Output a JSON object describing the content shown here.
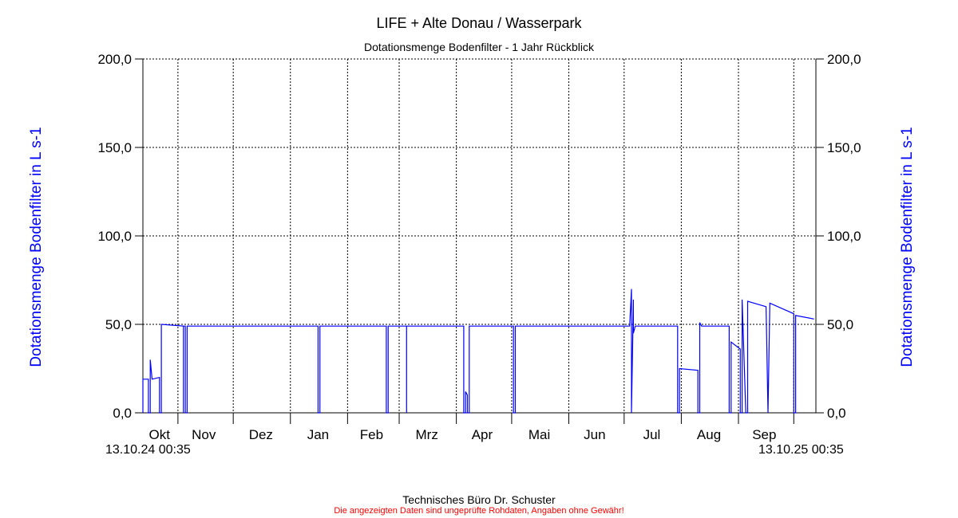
{
  "chart_data": {
    "type": "line",
    "title": "LIFE + Alte Donau / Wasserpark",
    "subtitle": "Dotationsmenge Bodenfilter - 1 Jahr Rückblick",
    "ylabel_left": "Dotationsmenge Bodenfilter in L s-1",
    "ylabel_right": "Dotationsmenge Bodenfilter in L s-1",
    "ylim": [
      0,
      200
    ],
    "yticks": [
      "0,0",
      "50,0",
      "100,0",
      "150,0",
      "200,0"
    ],
    "ytick_values": [
      0,
      50,
      100,
      150,
      200
    ],
    "x_start": "13.10.24 00:35",
    "x_end": "13.10.25 00:35",
    "xlim": [
      "2024-10-13",
      "2025-10-13"
    ],
    "month_boundaries": [
      "2024-11-01",
      "2024-12-01",
      "2025-01-01",
      "2025-02-01",
      "2025-03-01",
      "2025-04-01",
      "2025-05-01",
      "2025-06-01",
      "2025-07-01",
      "2025-08-01",
      "2025-09-01",
      "2025-10-01"
    ],
    "month_labels": [
      "Okt",
      "Nov",
      "Dez",
      "Jan",
      "Feb",
      "Mrz",
      "Apr",
      "Mai",
      "Jun",
      "Jul",
      "Aug",
      "Sep"
    ],
    "month_label_dates": [
      "2024-10-22",
      "2024-11-15",
      "2024-12-16",
      "2025-01-16",
      "2025-02-14",
      "2025-03-16",
      "2025-04-15",
      "2025-05-16",
      "2025-06-15",
      "2025-07-16",
      "2025-08-16",
      "2025-09-15"
    ],
    "grid": true,
    "line_color": "#0000ff",
    "series": [
      {
        "points": [
          [
            "2024-10-13",
            0
          ],
          [
            "2024-10-13",
            19
          ],
          [
            "2024-10-16",
            19
          ],
          [
            "2024-10-16",
            0
          ],
          [
            "2024-10-17",
            0
          ],
          [
            "2024-10-17",
            30
          ],
          [
            "2024-10-18",
            19
          ],
          [
            "2024-10-22",
            20
          ],
          [
            "2024-10-22",
            0
          ],
          [
            "2024-10-23",
            0
          ],
          [
            "2024-10-23",
            50
          ],
          [
            "2024-11-04",
            49
          ],
          [
            "2024-11-04",
            0
          ],
          [
            "2024-11-04",
            49
          ],
          [
            "2024-11-05",
            49
          ],
          [
            "2024-11-05",
            0
          ],
          [
            "2024-11-06",
            0
          ],
          [
            "2024-11-06",
            49
          ],
          [
            "2025-01-16",
            49
          ],
          [
            "2025-01-16",
            0
          ],
          [
            "2025-01-17",
            0
          ],
          [
            "2025-01-17",
            49
          ],
          [
            "2025-02-22",
            49
          ],
          [
            "2025-02-22",
            0
          ],
          [
            "2025-02-23",
            0
          ],
          [
            "2025-02-23",
            49
          ],
          [
            "2025-03-05",
            49
          ],
          [
            "2025-03-05",
            0
          ],
          [
            "2025-03-05",
            49
          ],
          [
            "2025-04-05",
            49
          ],
          [
            "2025-04-05",
            0
          ],
          [
            "2025-04-06",
            0
          ],
          [
            "2025-04-06",
            12
          ],
          [
            "2025-04-07",
            10
          ],
          [
            "2025-04-07",
            0
          ],
          [
            "2025-04-08",
            0
          ],
          [
            "2025-04-08",
            49
          ],
          [
            "2025-05-02",
            49
          ],
          [
            "2025-05-02",
            0
          ],
          [
            "2025-05-03",
            0
          ],
          [
            "2025-05-03",
            49
          ],
          [
            "2025-07-04",
            49
          ],
          [
            "2025-07-05",
            70
          ],
          [
            "2025-07-05",
            0
          ],
          [
            "2025-07-06",
            64
          ],
          [
            "2025-07-06",
            45
          ],
          [
            "2025-07-07",
            49
          ],
          [
            "2025-07-30",
            49
          ],
          [
            "2025-07-30",
            0
          ],
          [
            "2025-07-31",
            0
          ],
          [
            "2025-07-31",
            25
          ],
          [
            "2025-08-10",
            24
          ],
          [
            "2025-08-10",
            0
          ],
          [
            "2025-08-11",
            0
          ],
          [
            "2025-08-11",
            51
          ],
          [
            "2025-08-12",
            49
          ],
          [
            "2025-08-27",
            49
          ],
          [
            "2025-08-27",
            0
          ],
          [
            "2025-08-28",
            0
          ],
          [
            "2025-08-28",
            40
          ],
          [
            "2025-09-02",
            36
          ],
          [
            "2025-09-02",
            0
          ],
          [
            "2025-09-03",
            0
          ],
          [
            "2025-09-03",
            64
          ],
          [
            "2025-09-05",
            0
          ],
          [
            "2025-09-06",
            0
          ],
          [
            "2025-09-06",
            63
          ],
          [
            "2025-09-16",
            60
          ],
          [
            "2025-09-17",
            0
          ],
          [
            "2025-09-18",
            62
          ],
          [
            "2025-10-01",
            56
          ],
          [
            "2025-10-01",
            0
          ],
          [
            "2025-10-02",
            0
          ],
          [
            "2025-10-02",
            55
          ],
          [
            "2025-10-12",
            53
          ]
        ]
      }
    ]
  },
  "footer": {
    "credit": "Technisches Büro Dr. Schuster",
    "disclaimer": "Die angezeigten Daten sind ungeprüfte Rohdaten, Angaben ohne Gewähr!"
  }
}
